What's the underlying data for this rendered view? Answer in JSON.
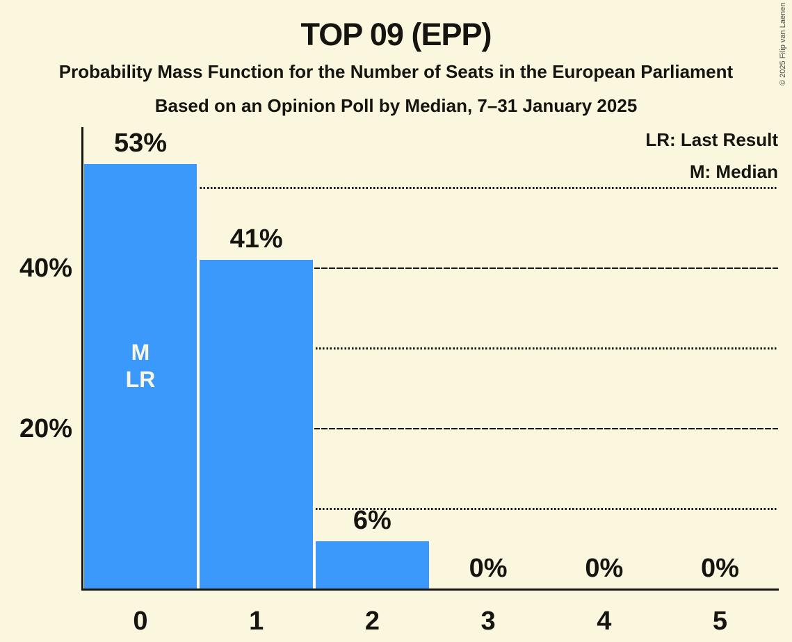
{
  "title": "TOP 09 (EPP)",
  "subtitle_line1": "Probability Mass Function for the Number of Seats in the European Parliament",
  "subtitle_line2": "Based on an Opinion Poll by Median, 7–31 January 2025",
  "copyright": "© 2025 Filip van Laenen",
  "legend": {
    "lr": "LR: Last Result",
    "m": "M: Median"
  },
  "colors": {
    "background": "#fbf6de",
    "bar": "#3a99fa",
    "ink": "#15140f",
    "bar_separator": "#ffffff",
    "in_bar_text": "#faf5dd",
    "copyright_text": "#4e4e46"
  },
  "chart_data": {
    "type": "bar",
    "title": "TOP 09 (EPP)",
    "categories": [
      "0",
      "1",
      "2",
      "3",
      "4",
      "5"
    ],
    "values": [
      53,
      41,
      6,
      0,
      0,
      0
    ],
    "value_labels": [
      "53%",
      "41%",
      "6%",
      "0%",
      "0%",
      "0%"
    ],
    "xlabel": "",
    "ylabel": "",
    "ylim": [
      0,
      57.5
    ],
    "y_ticks": [
      {
        "label": "20%",
        "value": 20
      },
      {
        "label": "40%",
        "value": 40
      }
    ],
    "gridlines": [
      {
        "value": 10,
        "style": "dotted"
      },
      {
        "value": 20,
        "style": "solid"
      },
      {
        "value": 30,
        "style": "dotted"
      },
      {
        "value": 40,
        "style": "solid"
      },
      {
        "value": 50,
        "style": "dotted"
      }
    ],
    "grid": "horizontal-only",
    "legend_position": "top-right",
    "annotations": [
      {
        "bar_index": 0,
        "lines": [
          "M",
          "LR"
        ]
      }
    ]
  }
}
